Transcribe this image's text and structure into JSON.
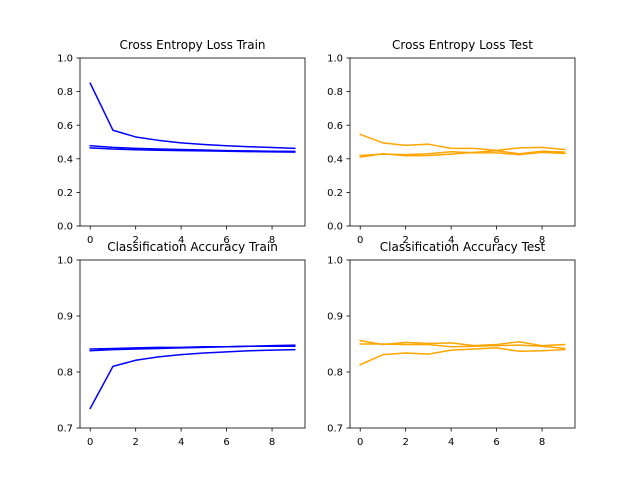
{
  "chart_data": [
    {
      "type": "line",
      "title": "Cross Entropy Loss Train",
      "xlabel": "",
      "ylabel": "",
      "xlim": [
        -0.45,
        9.45
      ],
      "ylim": [
        0,
        1.0
      ],
      "xticks": [
        0,
        2,
        4,
        6,
        8
      ],
      "yticks": [
        0.0,
        0.2,
        0.4,
        0.6,
        0.8,
        1.0
      ],
      "ytick_labels": [
        "0.0",
        "0.2",
        "0.4",
        "0.6",
        "0.8",
        "1.0"
      ],
      "grid": false,
      "x": [
        0,
        1,
        2,
        3,
        4,
        5,
        6,
        7,
        8,
        9
      ],
      "color": "#0000ff",
      "series": [
        {
          "values": [
            0.85,
            0.57,
            0.53,
            0.51,
            0.495,
            0.485,
            0.478,
            0.472,
            0.467,
            0.462
          ]
        },
        {
          "values": [
            0.478,
            0.468,
            0.462,
            0.458,
            0.455,
            0.452,
            0.449,
            0.447,
            0.445,
            0.444
          ]
        },
        {
          "values": [
            0.465,
            0.458,
            0.454,
            0.451,
            0.449,
            0.447,
            0.445,
            0.443,
            0.441,
            0.44
          ]
        }
      ]
    },
    {
      "type": "line",
      "title": "Cross Entropy Loss Test",
      "xlabel": "",
      "ylabel": "",
      "xlim": [
        -0.45,
        9.45
      ],
      "ylim": [
        0,
        1.0
      ],
      "xticks": [
        0,
        2,
        4,
        6,
        8
      ],
      "yticks": [
        0.0,
        0.2,
        0.4,
        0.6,
        0.8,
        1.0
      ],
      "ytick_labels": [
        "0.0",
        "0.2",
        "0.4",
        "0.6",
        "0.8",
        "1.0"
      ],
      "grid": false,
      "x": [
        0,
        1,
        2,
        3,
        4,
        5,
        6,
        7,
        8,
        9
      ],
      "color": "#ffa500",
      "series": [
        {
          "values": [
            0.545,
            0.495,
            0.48,
            0.487,
            0.462,
            0.462,
            0.45,
            0.465,
            0.468,
            0.455
          ]
        },
        {
          "values": [
            0.41,
            0.43,
            0.418,
            0.42,
            0.428,
            0.438,
            0.448,
            0.43,
            0.445,
            0.44
          ]
        },
        {
          "values": [
            0.42,
            0.428,
            0.425,
            0.43,
            0.442,
            0.436,
            0.435,
            0.425,
            0.438,
            0.432
          ]
        }
      ]
    },
    {
      "type": "line",
      "title": "Classification Accuracy Train",
      "xlabel": "",
      "ylabel": "",
      "xlim": [
        -0.45,
        9.45
      ],
      "ylim": [
        0.7,
        1.0
      ],
      "xticks": [
        0,
        2,
        4,
        6,
        8
      ],
      "yticks": [
        0.7,
        0.8,
        0.9,
        1.0
      ],
      "ytick_labels": [
        "0.7",
        "0.8",
        "0.9",
        "1.0"
      ],
      "grid": false,
      "x": [
        0,
        1,
        2,
        3,
        4,
        5,
        6,
        7,
        8,
        9
      ],
      "color": "#0000ff",
      "series": [
        {
          "values": [
            0.735,
            0.81,
            0.821,
            0.827,
            0.831,
            0.834,
            0.836,
            0.838,
            0.839,
            0.84
          ]
        },
        {
          "values": [
            0.841,
            0.842,
            0.843,
            0.844,
            0.844,
            0.845,
            0.845,
            0.846,
            0.846,
            0.846
          ]
        },
        {
          "values": [
            0.838,
            0.84,
            0.841,
            0.842,
            0.843,
            0.844,
            0.845,
            0.846,
            0.847,
            0.848
          ]
        }
      ]
    },
    {
      "type": "line",
      "title": "Classification Accuracy Test",
      "xlabel": "",
      "ylabel": "",
      "xlim": [
        -0.45,
        9.45
      ],
      "ylim": [
        0.7,
        1.0
      ],
      "xticks": [
        0,
        2,
        4,
        6,
        8
      ],
      "yticks": [
        0.7,
        0.8,
        0.9,
        1.0
      ],
      "ytick_labels": [
        "0.7",
        "0.8",
        "0.9",
        "1.0"
      ],
      "grid": false,
      "x": [
        0,
        1,
        2,
        3,
        4,
        5,
        6,
        7,
        8,
        9
      ],
      "color": "#ffa500",
      "series": [
        {
          "values": [
            0.813,
            0.831,
            0.834,
            0.832,
            0.839,
            0.841,
            0.843,
            0.837,
            0.838,
            0.84
          ]
        },
        {
          "values": [
            0.856,
            0.849,
            0.853,
            0.851,
            0.852,
            0.847,
            0.849,
            0.854,
            0.847,
            0.849
          ]
        },
        {
          "values": [
            0.85,
            0.85,
            0.849,
            0.849,
            0.845,
            0.846,
            0.847,
            0.848,
            0.846,
            0.842
          ]
        }
      ]
    }
  ]
}
